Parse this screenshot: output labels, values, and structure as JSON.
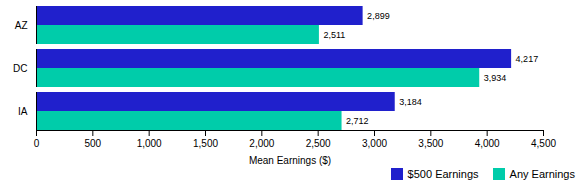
{
  "chart_data": {
    "type": "bar",
    "orientation": "horizontal",
    "categories": [
      "IA",
      "DC",
      "AZ"
    ],
    "series": [
      {
        "name": "$500 Earnings",
        "color": "#2020cc",
        "values": [
          3184,
          4217,
          2899
        ],
        "value_labels": [
          "3,184",
          "4,217",
          "2,899"
        ]
      },
      {
        "name": "Any Earnings",
        "color": "#00ccaa",
        "values": [
          2712,
          3934,
          2511
        ],
        "value_labels": [
          "2,712",
          "3,934",
          "2,511"
        ]
      }
    ],
    "xlabel": "Mean Earnings ($)",
    "xlim": [
      0,
      4500
    ],
    "xticks": [
      0,
      500,
      {
        "value": 1000,
        "label": "1,000"
      },
      {
        "value": 1500,
        "label": "1,500"
      },
      {
        "value": 2000,
        "label": "2,000"
      },
      {
        "value": 2500,
        "label": "2,500"
      },
      {
        "value": 3000,
        "label": "3,000"
      },
      {
        "value": 3500,
        "label": "3,500"
      },
      {
        "value": 4000,
        "label": "4,000"
      },
      {
        "value": 4500,
        "label": "4,500"
      }
    ],
    "data_labels": true,
    "legend": "lower right",
    "grid": false
  }
}
